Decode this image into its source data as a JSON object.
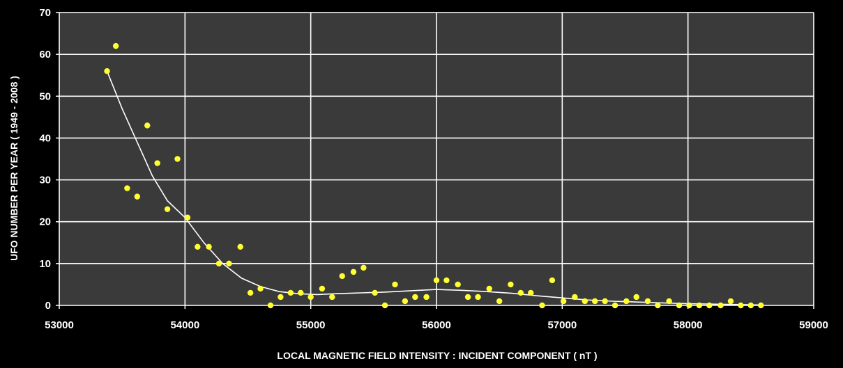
{
  "chart_data": {
    "type": "scatter",
    "xlabel": "LOCAL MAGNETIC FIELD INTENSITY : INCIDENT COMPONENT ( nT )",
    "ylabel": "UFO NUMBER PER YEAR ( 1949 - 2008 )",
    "xlim": [
      53000,
      59000
    ],
    "ylim": [
      0,
      70
    ],
    "x_ticks": [
      53000,
      54000,
      55000,
      56000,
      57000,
      58000,
      59000
    ],
    "y_ticks": [
      0,
      10,
      20,
      30,
      40,
      50,
      60,
      70
    ],
    "grid": true,
    "legend": "none",
    "colors": {
      "plot_background": "#3a3a3a",
      "page_background": "#000000",
      "grid": "#ffffff",
      "points": "#ffff33",
      "trend": "#ffffff",
      "text": "#ffffff"
    },
    "series": [
      {
        "type": "scatter",
        "points": [
          [
            53380,
            56
          ],
          [
            53450,
            62
          ],
          [
            53540,
            28
          ],
          [
            53620,
            26
          ],
          [
            53700,
            43
          ],
          [
            53780,
            34
          ],
          [
            53860,
            23
          ],
          [
            53940,
            35
          ],
          [
            54020,
            21
          ],
          [
            54100,
            14
          ],
          [
            54190,
            14
          ],
          [
            54270,
            10
          ],
          [
            54350,
            10
          ],
          [
            54440,
            14
          ],
          [
            54520,
            3
          ],
          [
            54600,
            4
          ],
          [
            54680,
            0
          ],
          [
            54760,
            2
          ],
          [
            54840,
            3
          ],
          [
            54920,
            3
          ],
          [
            55000,
            2
          ],
          [
            55090,
            4
          ],
          [
            55170,
            2
          ],
          [
            55250,
            7
          ],
          [
            55340,
            8
          ],
          [
            55420,
            9
          ],
          [
            55510,
            3
          ],
          [
            55590,
            0
          ],
          [
            55670,
            5
          ],
          [
            55750,
            1
          ],
          [
            55830,
            2
          ],
          [
            55920,
            2
          ],
          [
            56000,
            6
          ],
          [
            56080,
            6
          ],
          [
            56170,
            5
          ],
          [
            56250,
            2
          ],
          [
            56330,
            2
          ],
          [
            56420,
            4
          ],
          [
            56500,
            1
          ],
          [
            56590,
            5
          ],
          [
            56670,
            3
          ],
          [
            56750,
            3
          ],
          [
            56840,
            0
          ],
          [
            56920,
            6
          ],
          [
            57010,
            1
          ],
          [
            57100,
            2
          ],
          [
            57180,
            1
          ],
          [
            57260,
            1
          ],
          [
            57340,
            1
          ],
          [
            57420,
            0
          ],
          [
            57510,
            1
          ],
          [
            57590,
            2
          ],
          [
            57680,
            1
          ],
          [
            57760,
            0
          ],
          [
            57850,
            1
          ],
          [
            57930,
            0
          ],
          [
            58010,
            0
          ],
          [
            58090,
            0
          ],
          [
            58170,
            0
          ],
          [
            58260,
            0
          ],
          [
            58340,
            1
          ],
          [
            58420,
            0
          ],
          [
            58500,
            0
          ],
          [
            58580,
            0
          ]
        ]
      },
      {
        "type": "line",
        "points": [
          [
            53380,
            56
          ],
          [
            53500,
            47
          ],
          [
            53620,
            39
          ],
          [
            53740,
            31
          ],
          [
            53860,
            25
          ],
          [
            54000,
            21
          ],
          [
            54150,
            15
          ],
          [
            54300,
            10
          ],
          [
            54450,
            6.5
          ],
          [
            54600,
            4.5
          ],
          [
            54750,
            3.3
          ],
          [
            54900,
            2.8
          ],
          [
            55050,
            2.6
          ],
          [
            55200,
            2.8
          ],
          [
            55400,
            3.0
          ],
          [
            55600,
            3.2
          ],
          [
            55800,
            3.5
          ],
          [
            56000,
            3.8
          ],
          [
            56200,
            3.6
          ],
          [
            56400,
            3.3
          ],
          [
            56600,
            2.9
          ],
          [
            56800,
            2.3
          ],
          [
            57000,
            1.8
          ],
          [
            57200,
            1.3
          ],
          [
            57400,
            1.0
          ],
          [
            57600,
            0.8
          ],
          [
            57800,
            0.6
          ],
          [
            58000,
            0.4
          ],
          [
            58200,
            0.3
          ],
          [
            58400,
            0.2
          ],
          [
            58580,
            0.1
          ]
        ]
      }
    ]
  }
}
